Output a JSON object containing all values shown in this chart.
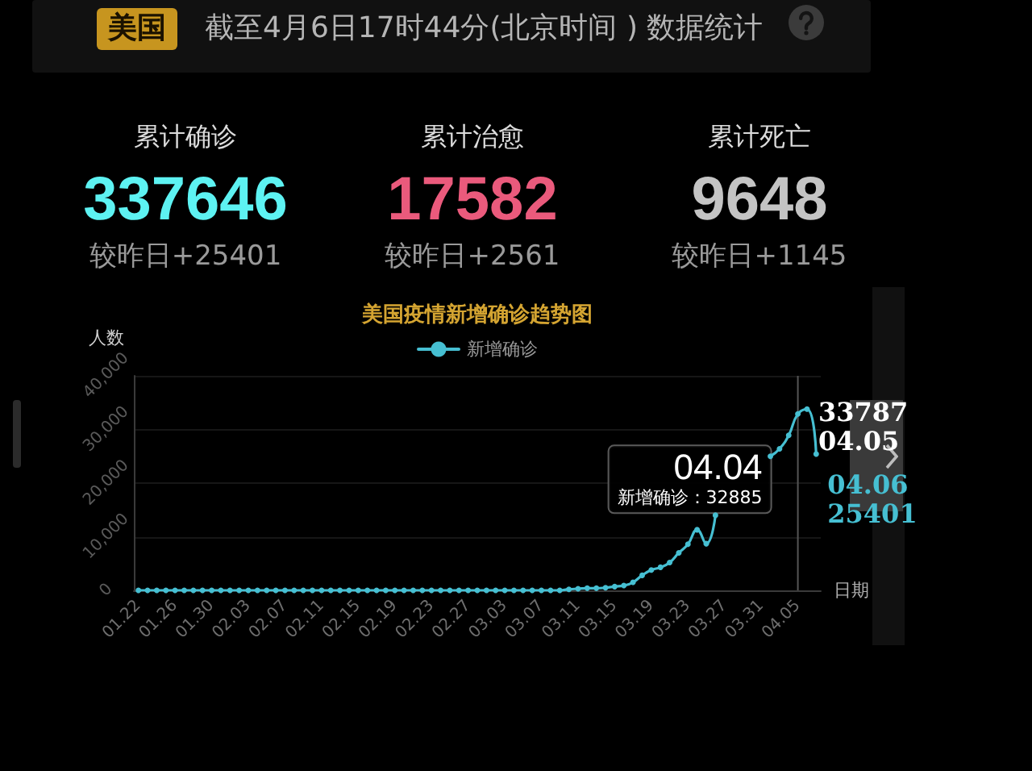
{
  "chart_data": [
    {
      "type": "other",
      "title": "美国",
      "subtitle": "截至4月6日17时44分(北京时间 ) 数据统计",
      "categories": [
        "累计确诊",
        "累计治愈",
        "累计死亡"
      ],
      "values": [
        337646,
        17582,
        9648
      ],
      "colors": [
        "#5df2f2",
        "#ea5a7c",
        "#c4c4c4"
      ],
      "data_labels": true,
      "annotations": [
        "较昨日+25401",
        "较昨日+2561",
        "较昨日+1145"
      ]
    },
    {
      "type": "line",
      "title": "美国疫情新增确诊趋势图",
      "xlabel": "日期",
      "ylabel": "人数",
      "categories": [
        "01.22",
        null,
        null,
        null,
        "01.26",
        null,
        null,
        null,
        "01.30",
        null,
        null,
        null,
        "02.03",
        null,
        null,
        null,
        "02.07",
        null,
        null,
        null,
        "02.11",
        null,
        null,
        null,
        "02.15",
        null,
        null,
        null,
        "02.19",
        null,
        null,
        null,
        "02.23",
        null,
        null,
        null,
        "02.27",
        null,
        null,
        null,
        "03.03",
        null,
        null,
        null,
        "03.07",
        null,
        null,
        null,
        "03.11",
        null,
        null,
        null,
        "03.15",
        null,
        null,
        null,
        "03.19",
        null,
        null,
        null,
        "03.23",
        null,
        null,
        null,
        "03.27",
        null,
        null,
        null,
        "03.31",
        null,
        null,
        null,
        "04.05",
        null,
        null
      ],
      "series": [
        {
          "name": "新增确诊",
          "color": "#46bfd2",
          "values": [
            0,
            0,
            0,
            0,
            0,
            0,
            0,
            0,
            0,
            0,
            0,
            0,
            0,
            0,
            0,
            0,
            0,
            0,
            0,
            0,
            0,
            0,
            0,
            0,
            0,
            0,
            0,
            0,
            0,
            0,
            0,
            0,
            0,
            0,
            0,
            0,
            0,
            0,
            0,
            0,
            0,
            0,
            0,
            0,
            0,
            0,
            0,
            200,
            300,
            400,
            400,
            500,
            700,
            900,
            1500,
            2800,
            3800,
            4300,
            5200,
            7000,
            8600,
            11300,
            8700,
            14000,
            null,
            null,
            null,
            null,
            null,
            25000,
            26400,
            28900,
            32885,
            33787,
            25401
          ]
        }
      ],
      "ylim": [
        0,
        40000
      ],
      "yticks": [
        0,
        {
          "value": 10000,
          "label": "10,000"
        },
        {
          "value": 20000,
          "label": "20,000"
        },
        {
          "value": 30000,
          "label": "30,000"
        },
        {
          "value": 40000,
          "label": "40,000"
        }
      ],
      "grid": "y",
      "legend": "top",
      "marker": "circle",
      "annotations": [
        {
          "text": "04.04\n新增确诊：32885",
          "x": "04.05",
          "y": 32885
        },
        "33787\n04.05",
        "04.06\n25401"
      ]
    }
  ]
}
